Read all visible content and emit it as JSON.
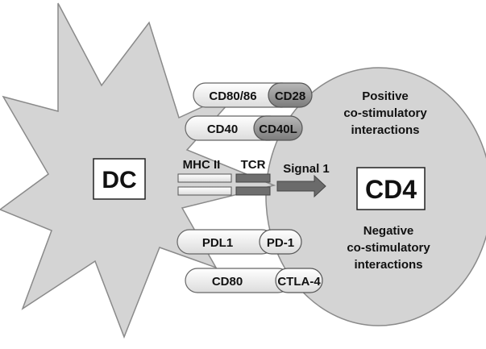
{
  "colors": {
    "cell_fill": "#d4d4d4",
    "cell_stroke": "#8a8a8a",
    "receptor_light": "#e9e9e9",
    "receptor_dark": "#9a9a9a",
    "arrow": "#6b6b6b",
    "text": "#111111"
  },
  "dc": {
    "label": "DC"
  },
  "cd4": {
    "label": "CD4"
  },
  "annotations": {
    "positive_line1": "Positive",
    "positive_line2": "co-stimulatory",
    "positive_line3": "interactions",
    "negative_line1": "Negative",
    "negative_line2": "co-stimulatory",
    "negative_line3": "interactions"
  },
  "signal": {
    "mhc_label": "MHC II",
    "tcr_label": "TCR",
    "signal_label": "Signal 1"
  },
  "pairs": {
    "cd80_86": "CD80/86",
    "cd28": "CD28",
    "cd40": "CD40",
    "cd40l": "CD40L",
    "pdl1": "PDL1",
    "pd1": "PD-1",
    "cd80": "CD80",
    "ctla4": "CTLA-4"
  }
}
